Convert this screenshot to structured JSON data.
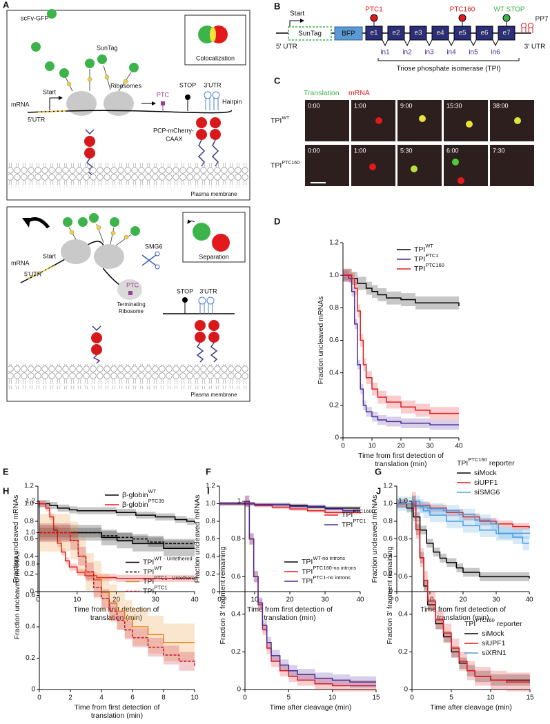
{
  "panel_a": {
    "label": "A",
    "top": {
      "inset": "Colocalization",
      "scfv": "scFv-GFP",
      "suntag": "SunTag",
      "ribosomes": "Ribosomes",
      "start": "Start",
      "mrna": "mRNA",
      "utr5": "5'UTR",
      "ptc": "PTC",
      "stop": "STOP",
      "utr3": "3'UTR",
      "hairpin": "Hairpin",
      "pcp": [
        "PCP-mCherry-",
        "CAAX"
      ],
      "membrane": "Plasma membrane"
    },
    "bottom": {
      "inset": "Separation",
      "mrna": "mRNA",
      "start": "Start",
      "utr5": "5'UTR",
      "smg6": "SMG6",
      "ptc": "PTC",
      "terminating": [
        "Terminating",
        "Ribosome"
      ],
      "stop": "STOP",
      "utr3": "3'UTR",
      "membrane": "Plasma membrane"
    }
  },
  "panel_b": {
    "label": "B",
    "start": "Start",
    "suntag": "SunTag",
    "bfp": "BFP",
    "exons": [
      "e1",
      "e2",
      "e3",
      "e4",
      "e5",
      "e6",
      "e7"
    ],
    "introns": [
      "in1",
      "in2",
      "in3",
      "in4",
      "in5",
      "in6"
    ],
    "ptc1": "PTC1",
    "ptc160": "PTC160",
    "wt_stop": "WT STOP",
    "pp7": "PP7",
    "utr5": "5' UTR",
    "utr3": "3' UTR",
    "gene": "Triose phosphate isomerase (TPI)"
  },
  "panel_c": {
    "label": "C",
    "legend": [
      "Translation",
      "mRNA"
    ],
    "rows": [
      {
        "name": "TPI",
        "sup": "WT",
        "times": [
          "0:00",
          "1:00",
          "9:00",
          "15:30",
          "38:00"
        ]
      },
      {
        "name": "TPI",
        "sup": "PTC160",
        "times": [
          "0:00",
          "1:00",
          "5:30",
          "6:00",
          "7:30"
        ]
      }
    ]
  },
  "chart_data": [
    {
      "type": "line",
      "panel": "D",
      "step": true,
      "ylabel": "Fraction uncleaved mRNAs",
      "xlabel": [
        "Time from first detection of",
        "translation (min)"
      ],
      "xlim": [
        0,
        40
      ],
      "ylim": [
        0,
        1.2
      ],
      "xticks": [
        0,
        10,
        20,
        30,
        40
      ],
      "yticks": [
        0,
        0.2,
        0.4,
        0.6,
        0.8,
        {
          "value": 1,
          "label": "1.0"
        },
        1.2
      ],
      "legend": "upper right",
      "series": [
        {
          "name": "TPI",
          "sup": "WT",
          "color": "#000000",
          "ci": 0.04,
          "x": [
            0,
            3,
            5,
            8,
            10,
            12,
            15,
            20,
            25,
            30,
            40
          ],
          "values": [
            1,
            0.98,
            0.95,
            0.92,
            0.9,
            0.88,
            0.86,
            0.85,
            0.83,
            0.83,
            0.81
          ]
        },
        {
          "name": "TPI",
          "sup": "PTC1",
          "color": "#4b2a94",
          "ci": 0.03,
          "x": [
            0,
            2,
            3,
            4,
            5,
            6,
            7,
            8,
            10,
            12,
            15,
            20,
            30,
            40
          ],
          "values": [
            1,
            0.98,
            0.9,
            0.7,
            0.45,
            0.3,
            0.2,
            0.16,
            0.13,
            0.11,
            0.1,
            0.09,
            0.08,
            0.08
          ]
        },
        {
          "name": "TPI",
          "sup": "PTC160",
          "color": "#e31a1c",
          "ci": 0.04,
          "x": [
            0,
            3,
            4,
            5,
            6,
            7,
            8,
            10,
            12,
            15,
            20,
            25,
            30,
            40
          ],
          "values": [
            1,
            0.98,
            0.92,
            0.78,
            0.6,
            0.45,
            0.37,
            0.3,
            0.25,
            0.22,
            0.19,
            0.17,
            0.15,
            0.15
          ]
        }
      ]
    },
    {
      "type": "line",
      "panel": "E",
      "step": true,
      "ylabel": "Fraction uncleaved mRNAs",
      "xlabel": [
        "Time from first detection of",
        "translation (min)"
      ],
      "xlim": [
        0,
        40
      ],
      "ylim": [
        0,
        1.2
      ],
      "xticks": [
        0,
        10,
        20,
        30,
        40
      ],
      "yticks": [
        0,
        0.2,
        0.4,
        0.6,
        0.8,
        {
          "value": 1,
          "label": "1.0"
        },
        1.2
      ],
      "legend": "upper right",
      "series": [
        {
          "name": "β-globin",
          "sup": "WT",
          "color": "#000000",
          "ci": 0.04,
          "x": [
            0,
            3,
            5,
            8,
            10,
            15,
            20,
            25,
            30,
            35,
            38,
            40
          ],
          "values": [
            1,
            0.98,
            0.95,
            0.93,
            0.92,
            0.92,
            0.9,
            0.87,
            0.85,
            0.82,
            0.8,
            0.78
          ]
        },
        {
          "name": "β-globin",
          "sup": "PTC39",
          "color": "#e31a1c",
          "ci": 0.04,
          "x": [
            0,
            2,
            3,
            4,
            5,
            6,
            7,
            8,
            10,
            12,
            15,
            20,
            40
          ],
          "values": [
            1,
            0.95,
            0.85,
            0.7,
            0.55,
            0.45,
            0.35,
            0.28,
            0.22,
            0.18,
            0.16,
            0.15,
            0.15
          ]
        }
      ]
    },
    {
      "type": "line",
      "panel": "F",
      "step": true,
      "ylabel": "Fraction uncleaved mRNAs",
      "xlabel": [
        "Time from first detection of",
        "translation (min)"
      ],
      "xlim": [
        0,
        40
      ],
      "ylim": [
        0,
        1.2
      ],
      "xticks": [
        0,
        10,
        20,
        30,
        40
      ],
      "yticks": [
        0,
        0.2,
        0.4,
        0.6,
        0.8,
        {
          "value": 1,
          "label": "1.0"
        },
        1.2
      ],
      "legend": "lower right",
      "series": [
        {
          "name": "TPI",
          "sup": "WT-no introns",
          "color": "#000000",
          "ci": 0.02,
          "x": [
            0,
            10,
            20,
            25,
            30,
            40
          ],
          "values": [
            1,
            0.99,
            0.98,
            0.96,
            0.95,
            0.95
          ]
        },
        {
          "name": "TPI",
          "sup": "PTC160-no introns",
          "color": "#e31a1c",
          "ci": 0.02,
          "x": [
            0,
            10,
            15,
            20,
            25,
            30,
            40
          ],
          "values": [
            1,
            0.98,
            0.96,
            0.94,
            0.92,
            0.9,
            0.89
          ]
        },
        {
          "name": "TPI",
          "sup": "PTC1-no introns",
          "color": "#4b2a94",
          "ci": 0.02,
          "x": [
            0,
            10,
            20,
            30,
            35,
            40
          ],
          "values": [
            1,
            0.99,
            0.97,
            0.94,
            0.92,
            0.92
          ]
        }
      ]
    },
    {
      "type": "line",
      "panel": "G",
      "step": true,
      "ylabel": "Fraction uncleaved mRNAs",
      "xlabel": [
        "Time from first detection of",
        "translation (min)"
      ],
      "xlim": [
        0,
        40
      ],
      "ylim": [
        0,
        1.2
      ],
      "xticks": [
        0,
        10,
        20,
        30,
        40
      ],
      "yticks": [
        0,
        0.2,
        0.4,
        0.6,
        0.8,
        {
          "value": 1,
          "label": "1.0"
        },
        1.2
      ],
      "legend": "upper right",
      "legend_title": {
        "name": "TPI",
        "sup": "PTC160",
        "suffix": "reporter"
      },
      "series": [
        {
          "name": "siMock",
          "color": "#000000",
          "ci": 0.05,
          "x": [
            0,
            3,
            5,
            7,
            9,
            11,
            13,
            15,
            18,
            20,
            25,
            40
          ],
          "values": [
            1,
            0.95,
            0.85,
            0.7,
            0.55,
            0.45,
            0.38,
            0.33,
            0.27,
            0.22,
            0.17,
            0.15
          ]
        },
        {
          "name": "siUPF1",
          "color": "#e31a1c",
          "ci": 0.04,
          "x": [
            0,
            5,
            10,
            15,
            20,
            25,
            30,
            35,
            40
          ],
          "values": [
            1,
            0.98,
            0.95,
            0.9,
            0.85,
            0.8,
            0.77,
            0.74,
            0.72
          ]
        },
        {
          "name": "siSMG6",
          "color": "#4a9fe0",
          "ci": 0.08,
          "x": [
            0,
            5,
            8,
            10,
            15,
            20,
            25,
            30,
            35,
            38,
            40
          ],
          "values": [
            1,
            0.97,
            0.92,
            0.87,
            0.8,
            0.75,
            0.7,
            0.66,
            0.62,
            0.55,
            0.55
          ]
        }
      ]
    },
    {
      "type": "line",
      "panel": "H",
      "step": true,
      "ylabel": "Fraction uncleaved mRNAs",
      "xlabel": [
        "Time from first detection of",
        "translation (min)"
      ],
      "xlim": [
        0,
        10
      ],
      "ylim": [
        0,
        1.2
      ],
      "xticks": [
        0,
        2,
        4,
        6,
        8,
        10
      ],
      "yticks": [
        0,
        0.2,
        0.4,
        0.6,
        0.8,
        {
          "value": 1,
          "label": "1.0"
        },
        1.2
      ],
      "legend": "center right",
      "series": [
        {
          "name": "TPI",
          "sup": "WT - Untethered",
          "color": "#000000",
          "ci": 0.05,
          "x": [
            0,
            2,
            4,
            5,
            6,
            7,
            8,
            9,
            10
          ],
          "values": [
            1,
            1,
            0.97,
            0.95,
            0.93,
            0.93,
            0.9,
            0.9,
            0.9
          ]
        },
        {
          "name": "TPI",
          "sup": "WT",
          "color": "#000000",
          "dashed": true,
          "ci": 0.03,
          "x": [
            0,
            3,
            4,
            5,
            6,
            7,
            8,
            10
          ],
          "values": [
            1,
            1,
            0.98,
            0.97,
            0.96,
            0.94,
            0.93,
            0.93
          ]
        },
        {
          "name": "TPI",
          "sup": "PTC1 - Untethered",
          "color": "#e8871e",
          "ci": 0.12,
          "x": [
            0,
            2,
            2.5,
            3,
            3.5,
            4,
            4.5,
            5,
            5.5,
            6,
            7,
            8,
            9,
            10
          ],
          "values": [
            1,
            0.95,
            0.85,
            0.75,
            0.7,
            0.62,
            0.55,
            0.5,
            0.45,
            0.4,
            0.35,
            0.3,
            0.3,
            0.3
          ]
        },
        {
          "name": "TPI",
          "sup": "PTC1",
          "color": "#c8102e",
          "dashed": true,
          "ci": 0.06,
          "x": [
            0,
            2,
            2.5,
            3,
            3.5,
            4,
            4.5,
            5,
            5.5,
            6,
            7,
            8,
            9,
            10
          ],
          "values": [
            1,
            0.95,
            0.85,
            0.75,
            0.65,
            0.58,
            0.5,
            0.44,
            0.38,
            0.33,
            0.27,
            0.22,
            0.18,
            0.15
          ]
        }
      ]
    },
    {
      "type": "line",
      "panel": "I",
      "step": true,
      "ylabel": "Fraction 3' fragment remaining",
      "xlabel": [
        "Time after cleavage (min)"
      ],
      "xlim": [
        0,
        15
      ],
      "ylim": [
        0,
        1
      ],
      "xticks": [
        0,
        5,
        10,
        15
      ],
      "yticks": [
        0,
        0.2,
        0.4,
        0.6,
        0.8,
        1
      ],
      "legend": "upper right",
      "series": [
        {
          "name": "TPI",
          "sup": "PTC160",
          "color": "#e31a1c",
          "ci": 0.03,
          "x": [
            0,
            0.5,
            1,
            1.5,
            2,
            2.5,
            3,
            4,
            5,
            6,
            8,
            10,
            12,
            15
          ],
          "values": [
            1,
            0.8,
            0.6,
            0.45,
            0.32,
            0.22,
            0.15,
            0.1,
            0.07,
            0.05,
            0.03,
            0.02,
            0.02,
            0.02
          ]
        },
        {
          "name": "TPI",
          "sup": "PTC1",
          "color": "#4b2a94",
          "ci": 0.03,
          "x": [
            0,
            0.5,
            1,
            1.5,
            2,
            2.5,
            3,
            4,
            5,
            6,
            8,
            10,
            12,
            15
          ],
          "values": [
            1,
            0.8,
            0.6,
            0.46,
            0.34,
            0.25,
            0.18,
            0.13,
            0.1,
            0.08,
            0.06,
            0.05,
            0.04,
            0.04
          ]
        }
      ]
    },
    {
      "type": "line",
      "panel": "J",
      "step": true,
      "ylabel": "Fraction 3' fragment remaining",
      "xlabel": [
        "Time after cleavage (min)"
      ],
      "xlim": [
        0,
        15
      ],
      "ylim": [
        0,
        1
      ],
      "xticks": [
        0,
        5,
        10,
        15
      ],
      "yticks": [
        0,
        0.2,
        0.4,
        0.6,
        0.8,
        {
          "value": 1,
          "label": "1.0"
        }
      ],
      "legend": "lower right",
      "legend_title": {
        "name": "TPI",
        "sup": "PTC160",
        "suffix": "reporter"
      },
      "series": [
        {
          "name": "siMock",
          "color": "#000000",
          "ci": 0.03,
          "x": [
            0,
            0.5,
            1,
            1.5,
            2,
            3,
            4,
            5,
            6,
            7,
            8,
            10,
            12,
            15
          ],
          "values": [
            1,
            0.85,
            0.7,
            0.55,
            0.45,
            0.35,
            0.28,
            0.2,
            0.14,
            0.1,
            0.07,
            0.05,
            0.05,
            0.05
          ]
        },
        {
          "name": "siUPF1",
          "color": "#e31a1c",
          "ci": 0.05,
          "x": [
            0,
            0.5,
            1,
            1.5,
            2,
            3,
            4,
            5,
            6,
            7,
            8,
            10,
            12,
            15
          ],
          "values": [
            1,
            0.85,
            0.7,
            0.58,
            0.47,
            0.37,
            0.3,
            0.22,
            0.15,
            0.1,
            0.07,
            0.05,
            0.04,
            0.04
          ]
        },
        {
          "name": "siXRN1",
          "color": "#4a9fe0",
          "ci": 0.03,
          "x": [
            0,
            1,
            2,
            4,
            6,
            8,
            10,
            11,
            12,
            15
          ],
          "values": [
            1,
            0.97,
            0.96,
            0.95,
            0.93,
            0.9,
            0.88,
            0.83,
            0.83,
            0.83
          ]
        }
      ]
    }
  ]
}
